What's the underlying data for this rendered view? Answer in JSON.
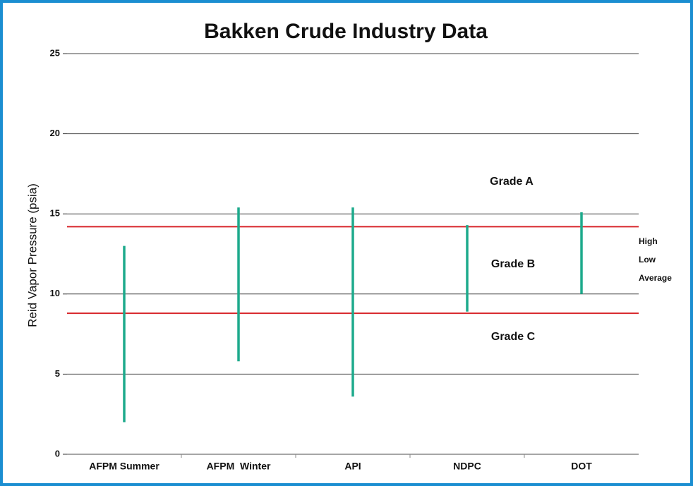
{
  "chart_data": {
    "type": "hilo",
    "title": "Bakken Crude Industry Data",
    "y_label": "Reid Vapor Pressure (psia)",
    "categories": [
      "AFPM Summer",
      "AFPM  Winter",
      "API",
      "NDPC",
      "DOT"
    ],
    "high": [
      13,
      15.4,
      15.4,
      14.3,
      15.1
    ],
    "low": [
      2,
      5.8,
      3.6,
      8.9,
      10
    ],
    "color": "#1daa8c",
    "ylim": [
      0,
      25
    ],
    "yticks": [
      0,
      5,
      10,
      15,
      20,
      25
    ],
    "grid": true,
    "reference_lines": [
      {
        "value": 14.2,
        "color": "#d8262b"
      },
      {
        "value": 8.8,
        "color": "#d8262b"
      }
    ],
    "annotations": [
      "Grade A",
      "Grade B",
      "Grade C"
    ],
    "legend": [
      "High",
      "Low",
      "Average"
    ]
  }
}
